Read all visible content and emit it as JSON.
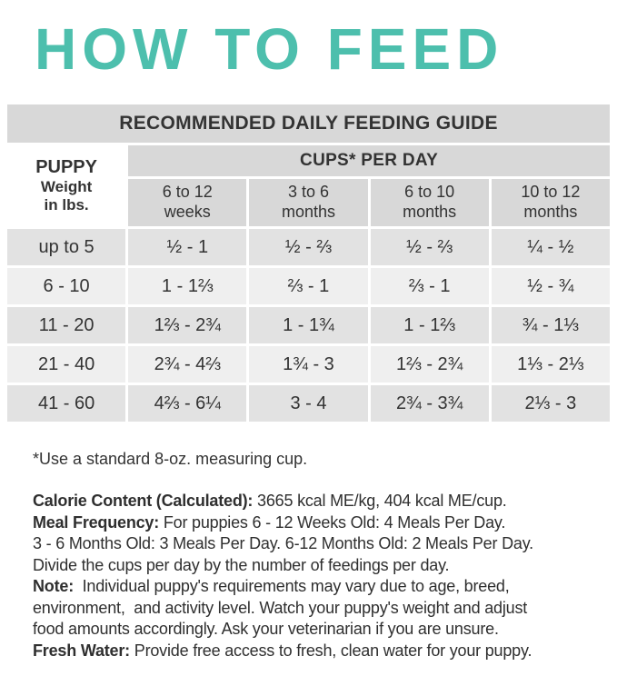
{
  "title": "HOW TO FEED",
  "table": {
    "header": "RECOMMENDED DAILY FEEDING GUIDE",
    "col_group_header": "CUPS* PER DAY",
    "weight_header": {
      "line1": "PUPPY",
      "line2": "Weight",
      "line3": "in lbs."
    },
    "columns": [
      {
        "range": "6 to 12",
        "unit": "weeks"
      },
      {
        "range": "3 to 6",
        "unit": "months"
      },
      {
        "range": "6 to 10",
        "unit": "months"
      },
      {
        "range": "10 to 12",
        "unit": "months"
      }
    ],
    "rows": [
      {
        "weight": "up to 5",
        "values": [
          "½ - 1",
          "½ - ⅔",
          "½ - ⅔",
          "¼ - ½"
        ]
      },
      {
        "weight": "6 - 10",
        "values": [
          "1 - 1⅔",
          "⅔ - 1",
          "⅔ - 1",
          "½ - ¾"
        ]
      },
      {
        "weight": "11 - 20",
        "values": [
          "1⅔ - 2¾",
          "1 - 1¾",
          "1 - 1⅔",
          "¾ - 1⅓"
        ]
      },
      {
        "weight": "21 - 40",
        "values": [
          "2¾ - 4⅔",
          "1¾ - 3",
          "1⅔ - 2¾",
          "1⅓ - 2⅓"
        ]
      },
      {
        "weight": "41 - 60",
        "values": [
          "4⅔ - 6¼",
          "3 - 4",
          "2¾ - 3¾",
          "2⅓ - 3"
        ]
      }
    ]
  },
  "footnote": "*Use a standard 8-oz. measuring cup.",
  "info": [
    {
      "bold": "Calorie Content (Calculated):",
      "text": " 3665 kcal ME/kg, 404 kcal ME/cup."
    },
    {
      "bold": "Meal Frequency:",
      "text": " For puppies 6 - 12 Weeks Old: 4 Meals Per Day."
    },
    {
      "bold": "",
      "text": "3 - 6 Months Old: 3 Meals Per Day. 6-12 Months Old: 2 Meals Per Day."
    },
    {
      "bold": "",
      "text": "Divide the cups per day by the number of feedings per day."
    },
    {
      "bold": "Note:",
      "text": "  Individual puppy's requirements may vary due to age, breed,"
    },
    {
      "bold": "",
      "text": "environment,  and activity level. Watch your puppy's weight and adjust"
    },
    {
      "bold": "",
      "text": "food amounts accordingly. Ask your veterinarian if you are unsure."
    },
    {
      "bold": "Fresh Water:",
      "text": " Provide free access to fresh, clean water for your puppy."
    }
  ],
  "colors": {
    "accent_teal": "#4dbfad",
    "header_gray": "#d8d8d8",
    "row_gray_dark": "#e2e2e2",
    "row_gray_light": "#efefef"
  }
}
